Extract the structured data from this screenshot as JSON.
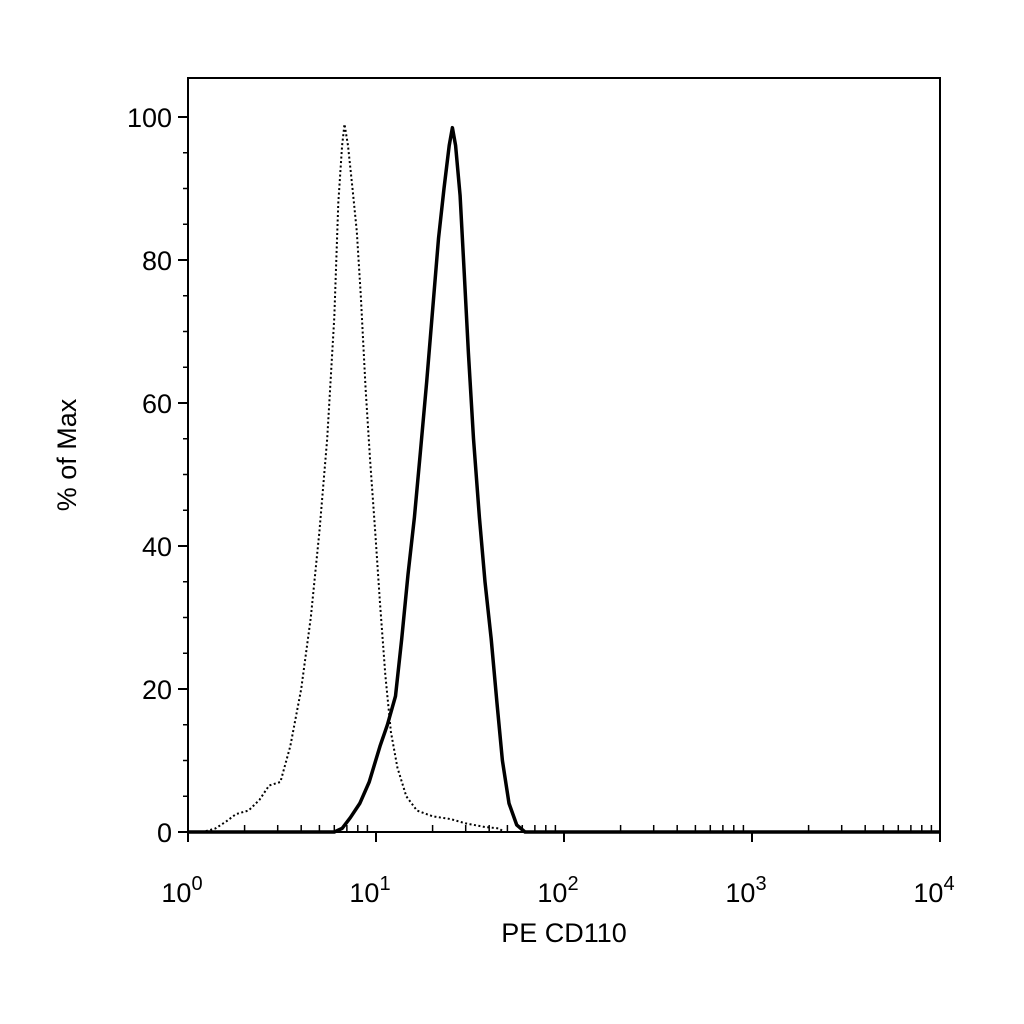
{
  "chart_data": {
    "type": "line",
    "xlabel": "PE CD110",
    "ylabel": "% of Max",
    "x_scale": "log",
    "xlim": [
      1,
      10000
    ],
    "ylim": [
      0,
      100
    ],
    "x_ticks": [
      {
        "base": "10",
        "exp": "0",
        "value": 1
      },
      {
        "base": "10",
        "exp": "1",
        "value": 10
      },
      {
        "base": "10",
        "exp": "2",
        "value": 100
      },
      {
        "base": "10",
        "exp": "3",
        "value": 1000
      },
      {
        "base": "10",
        "exp": "4",
        "value": 10000
      }
    ],
    "y_ticks": [
      "0",
      "20",
      "40",
      "60",
      "80",
      "100"
    ],
    "grid": false,
    "legend": "none",
    "series": [
      {
        "style": "dotted",
        "color": "#000000",
        "points": [
          [
            1.0,
            0
          ],
          [
            1.2,
            0
          ],
          [
            1.4,
            0.5
          ],
          [
            1.6,
            1.5
          ],
          [
            1.8,
            2.5
          ],
          [
            2.1,
            3
          ],
          [
            2.4,
            4.5
          ],
          [
            2.7,
            6.5
          ],
          [
            3.1,
            7
          ],
          [
            3.5,
            12
          ],
          [
            4.0,
            20
          ],
          [
            4.5,
            30
          ],
          [
            5.0,
            42
          ],
          [
            5.5,
            55
          ],
          [
            6.0,
            72
          ],
          [
            6.3,
            88
          ],
          [
            6.6,
            96
          ],
          [
            6.8,
            99
          ],
          [
            7.1,
            96
          ],
          [
            7.5,
            90
          ],
          [
            7.9,
            84
          ],
          [
            8.3,
            75
          ],
          [
            8.8,
            62
          ],
          [
            9.3,
            52
          ],
          [
            9.9,
            42
          ],
          [
            10.5,
            32
          ],
          [
            11.2,
            22
          ],
          [
            12.0,
            14
          ],
          [
            13.0,
            9
          ],
          [
            14.5,
            5
          ],
          [
            16.5,
            3
          ],
          [
            20.0,
            2.2
          ],
          [
            25.0,
            1.8
          ],
          [
            30.0,
            1.2
          ],
          [
            38.0,
            0.7
          ],
          [
            45.0,
            0.5
          ],
          [
            48.0,
            0
          ]
        ]
      },
      {
        "style": "solid",
        "color": "#000000",
        "points": [
          [
            1.0,
            0
          ],
          [
            6.0,
            0
          ],
          [
            6.6,
            0.5
          ],
          [
            7.3,
            2
          ],
          [
            8.2,
            4
          ],
          [
            9.2,
            7
          ],
          [
            10.5,
            12
          ],
          [
            11.5,
            15
          ],
          [
            12.7,
            19
          ],
          [
            13.7,
            27
          ],
          [
            14.8,
            36
          ],
          [
            16.0,
            44
          ],
          [
            17.2,
            53
          ],
          [
            18.6,
            63
          ],
          [
            20.0,
            73
          ],
          [
            21.5,
            83
          ],
          [
            23.0,
            90
          ],
          [
            24.5,
            96
          ],
          [
            25.5,
            98.5
          ],
          [
            26.5,
            96
          ],
          [
            28.0,
            89
          ],
          [
            29.5,
            78
          ],
          [
            31.0,
            67
          ],
          [
            33.0,
            55
          ],
          [
            35.5,
            44
          ],
          [
            38.0,
            35
          ],
          [
            41.0,
            27
          ],
          [
            44.0,
            18
          ],
          [
            47.0,
            10
          ],
          [
            51.0,
            4
          ],
          [
            56.0,
            1
          ],
          [
            62.0,
            0
          ],
          [
            10000,
            0
          ]
        ]
      }
    ]
  }
}
